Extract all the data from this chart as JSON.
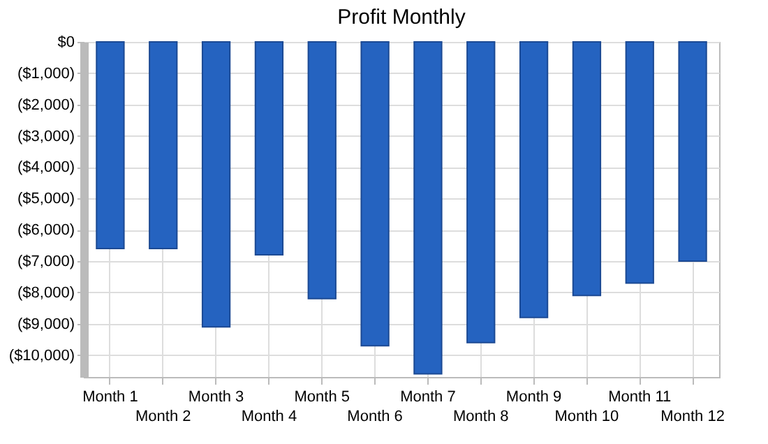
{
  "chart_data": {
    "type": "bar",
    "title": "Profit Monthly",
    "categories": [
      "Month 1",
      "Month 2",
      "Month 3",
      "Month 4",
      "Month 5",
      "Month 6",
      "Month 7",
      "Month 8",
      "Month 9",
      "Month 10",
      "Month 11",
      "Month 12"
    ],
    "values": [
      -6600,
      -6600,
      -9100,
      -6800,
      -8200,
      -9700,
      -10600,
      -9600,
      -8800,
      -8100,
      -7700,
      -7000
    ],
    "color": "#2563c0",
    "ylim": [
      -10700,
      0
    ],
    "yticks": [
      {
        "value": 0,
        "label": "$0"
      },
      {
        "value": -1000,
        "label": "($1,000)"
      },
      {
        "value": -2000,
        "label": "($2,000)"
      },
      {
        "value": -3000,
        "label": "($3,000)"
      },
      {
        "value": -4000,
        "label": "($4,000)"
      },
      {
        "value": -5000,
        "label": "($5,000)"
      },
      {
        "value": -6000,
        "label": "($6,000)"
      },
      {
        "value": -7000,
        "label": "($7,000)"
      },
      {
        "value": -8000,
        "label": "($8,000)"
      },
      {
        "value": -9000,
        "label": "($9,000)"
      },
      {
        "value": -10000,
        "label": "($10,000)"
      }
    ],
    "grid": true
  }
}
